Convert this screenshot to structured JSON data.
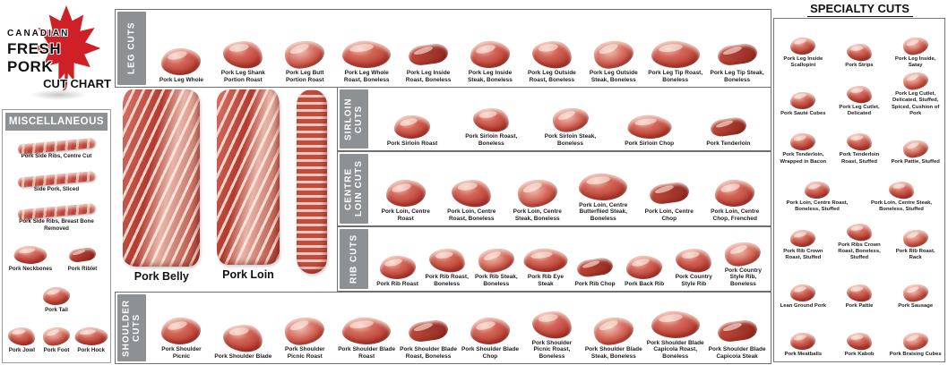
{
  "logo": {
    "line1": "CANADIAN",
    "line2": "FRESH PORK",
    "line3": "CUT CHART"
  },
  "colors": {
    "leaf_red": "#d02027",
    "tab_grey": "#8d9194",
    "meat_red": "#bb4237",
    "meat_light": "#eec2b6"
  },
  "miscellaneous": {
    "title": "MISCELLANEOUS",
    "items": [
      "Pork Side Ribs, Centre Cut",
      "Side Pork, Sliced",
      "Pork Side Ribs, Breast Bone Removed",
      "Pork Neckbones",
      "Pork Riblet",
      "Pork Tail",
      "Pork Jowl",
      "Pork Foot",
      "Pork Hock"
    ]
  },
  "bands": [
    {
      "label": "LEG CUTS",
      "items": [
        "Pork Leg Whole",
        "Pork Leg Shank Portion Roast",
        "Pork Leg Butt Portion Roast",
        "Pork Leg Whole Roast, Boneless",
        "Pork Leg Inside Roast, Boneless",
        "Pork Leg Inside Steak, Boneless",
        "Pork Leg Outside Roast, Boneless",
        "Pork Leg Outside Steak, Boneless",
        "Pork Leg Tip Roast, Boneless",
        "Pork Leg Tip Steak, Boneless"
      ]
    },
    {
      "label": "SIRLOIN CUTS",
      "items": [
        "Pork Sirloin Roast",
        "Pork Sirloin Roast, Boneless",
        "Pork Sirloin Steak, Boneless",
        "Pork Sirloin Chop",
        "Pork Tenderloin"
      ]
    },
    {
      "label": "CENTRE LOIN CUTS",
      "items": [
        "Pork Loin, Centre Roast",
        "Pork Loin, Centre Roast, Boneless",
        "Pork Loin, Centre Steak, Boneless",
        "Pork Loin, Centre Butterflied Steak, Boneless",
        "Pork Loin, Centre Chop",
        "Pork Loin, Centre Chop, Frenched"
      ]
    },
    {
      "label": "RIB CUTS",
      "items": [
        "Pork Rib Roast",
        "Pork Rib Roast, Boneless",
        "Pork Rib Steak, Boneless",
        "Pork Rib Eye Steak",
        "Pork Rib Chop",
        "Pork Back Rib",
        "Pork Country Style Rib",
        "Pork Country Style Rib, Boneless"
      ]
    },
    {
      "label": "SHOULDER CUTS",
      "items": [
        "Pork Shoulder Picnic",
        "Pork Shoulder Blade",
        "Pork Shoulder Picnic Roast",
        "Pork Shoulder Blade Roast",
        "Pork Shoulder Blade Roast, Boneless",
        "Pork Shoulder Blade Chop",
        "Pork Shoulder Picnic Roast, Boneless",
        "Pork Shoulder Blade Steak, Boneless",
        "Pork Shoulder Blade Capicola Roast, Boneless",
        "Pork Shoulder Blade Capicola Steak"
      ]
    }
  ],
  "center": {
    "labels": [
      "Pork Belly",
      "Pork Loin"
    ]
  },
  "specialty": {
    "title": "SPECIALTY CUTS",
    "rows": [
      [
        "Pork Leg Inside Scallopini",
        "Pork Strips",
        "Pork Leg Inside, Satay"
      ],
      [
        "Pork Sauté Cubes",
        "Pork Leg Cutlet, Delicated",
        "Pork Leg Cutlet, Delicated, Stuffed, Spiced, Cushion of Pork"
      ],
      [
        "Pork Tenderloin, Wrapped in Bacon",
        "Pork Tenderloin Roast, Stuffed",
        "Pork Pattie, Stuffed"
      ],
      [
        "Pork Loin, Centre Roast, Boneless, Stuffed",
        "Pork Loin, Centre Steak, Boneless, Stuffed"
      ],
      [
        "Pork Rib Crown Roast, Stuffed",
        "Pork Ribs Crown Roast, Boneless, Stuffed",
        "Pork Rib Roast, Rack"
      ],
      [
        "Lean Ground Pork",
        "Pork Pattie",
        "Pork Sausage"
      ],
      [
        "Pork Meatballs",
        "Pork Kabob",
        "Pork Braising Cubes"
      ]
    ]
  }
}
